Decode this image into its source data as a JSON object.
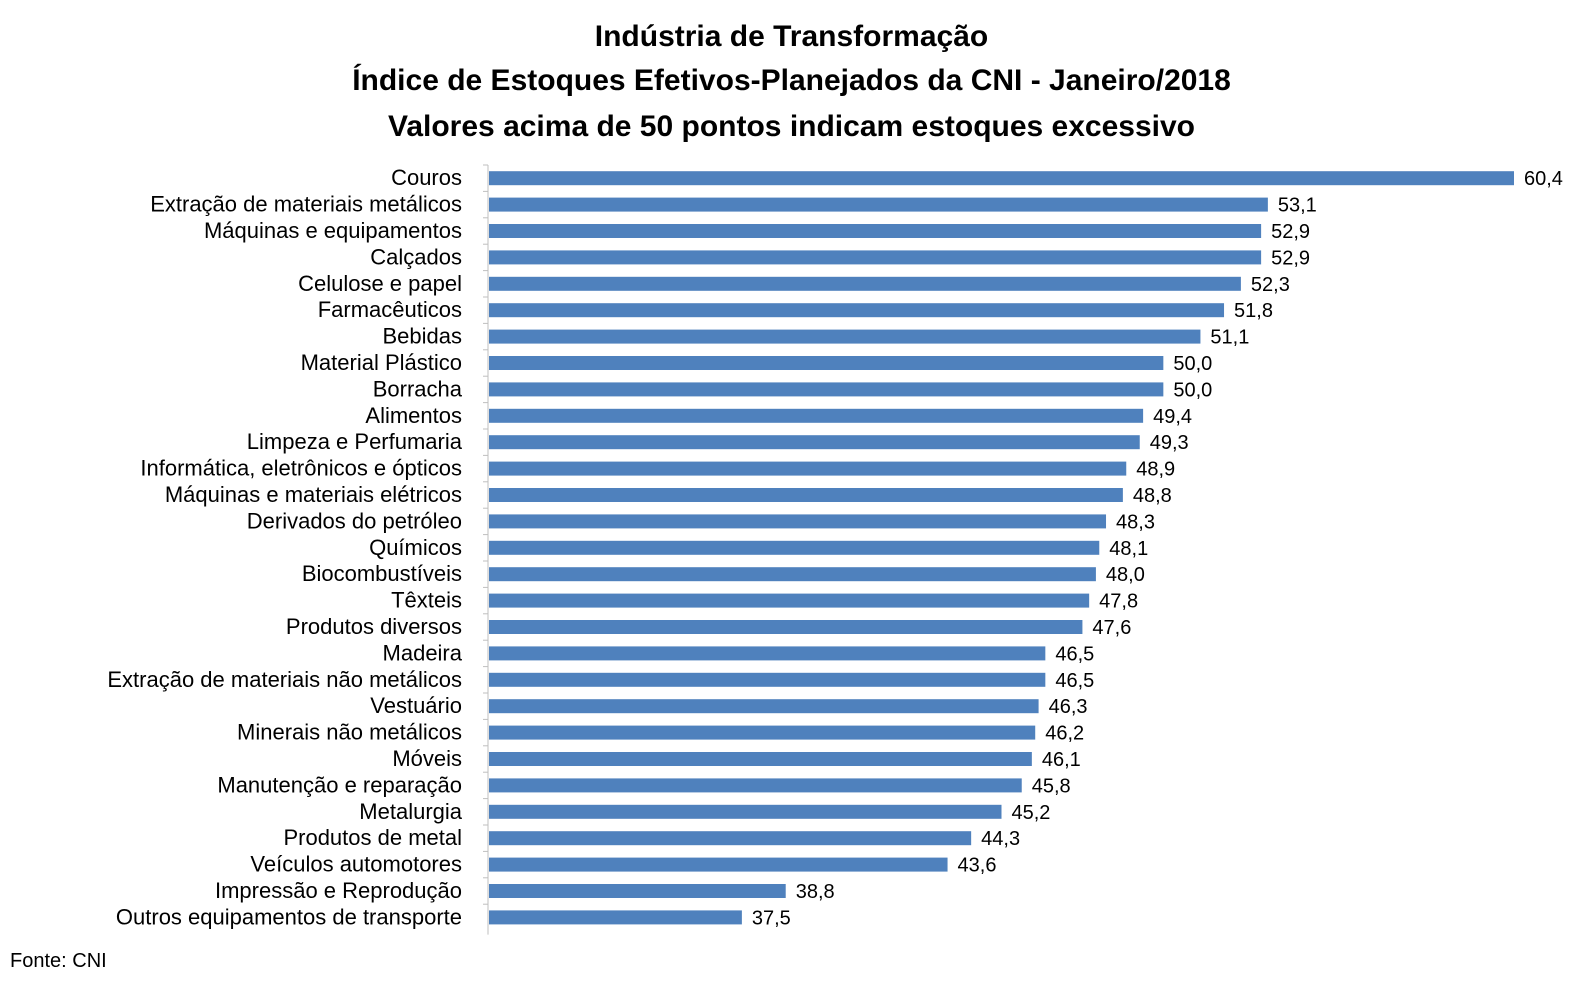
{
  "chart_data": {
    "type": "bar",
    "orientation": "horizontal",
    "title": [
      "Indústria de Transformação",
      "Índice de Estoques Efetivos-Planejados da CNI - Janeiro/2018",
      "Valores acima de 50 pontos indicam estoques excessivo"
    ],
    "categories": [
      "Couros",
      "Extração de materiais metálicos",
      "Máquinas e equipamentos",
      "Calçados",
      "Celulose e papel",
      "Farmacêuticos",
      "Bebidas",
      "Material Plástico",
      "Borracha",
      "Alimentos",
      "Limpeza e Perfumaria",
      "Informática, eletrônicos e ópticos",
      "Máquinas e materiais elétricos",
      "Derivados do petróleo",
      "Químicos",
      "Biocombustíveis",
      "Têxteis",
      "Produtos diversos",
      "Madeira",
      "Extração de materiais não metálicos",
      "Vestuário",
      "Minerais não metálicos",
      "Móveis",
      "Manutenção e reparação",
      "Metalurgia",
      "Produtos de metal",
      "Veículos automotores",
      "Impressão e Reprodução",
      "Outros equipamentos de transporte"
    ],
    "values": [
      60.4,
      53.1,
      52.9,
      52.9,
      52.3,
      51.8,
      51.1,
      50.0,
      50.0,
      49.4,
      49.3,
      48.9,
      48.8,
      48.3,
      48.1,
      48.0,
      47.8,
      47.6,
      46.5,
      46.5,
      46.3,
      46.2,
      46.1,
      45.8,
      45.2,
      44.3,
      43.6,
      38.8,
      37.5
    ],
    "data_labels": [
      "60,4",
      "53,1",
      "52,9",
      "52,9",
      "52,3",
      "51,8",
      "51,1",
      "50,0",
      "50,0",
      "49,4",
      "49,3",
      "48,9",
      "48,8",
      "48,3",
      "48,1",
      "48,0",
      "47,8",
      "47,6",
      "46,5",
      "46,5",
      "46,3",
      "46,2",
      "46,1",
      "45,8",
      "45,2",
      "44,3",
      "43,6",
      "38,8",
      "37,5"
    ],
    "xlim": [
      30,
      60.4
    ],
    "bar_color": "#4f81bd",
    "grid": false,
    "legend": "none"
  },
  "source": "Fonte: CNI"
}
